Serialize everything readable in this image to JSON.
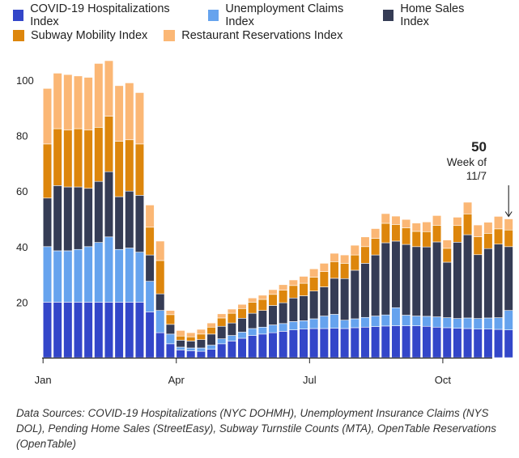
{
  "colors": {
    "covid": "#3346c9",
    "unemployment": "#66a3ee",
    "home": "#353c55",
    "subway": "#dd860c",
    "restaurant": "#fbb775",
    "axis": "#222222",
    "bar_edge": "#ffffff"
  },
  "legend": {
    "row1": [
      {
        "label": "COVID-19 Hospitalizations Index",
        "color": "#3346c9"
      },
      {
        "label": "Unemployment Claims Index",
        "color": "#66a3ee"
      },
      {
        "label": "Home Sales Index",
        "color": "#353c55"
      }
    ],
    "row2": [
      {
        "label": "Subway Mobility Index",
        "color": "#dd860c"
      },
      {
        "label": "Restaurant Reservations Index",
        "color": "#fbb775"
      }
    ]
  },
  "source_note": "Data Sources: COVID-19 Hospitalizations (NYC DOHMH), Unemployment Insurance Claims (NYS DOL), Pending Home Sales (StreetEasy), Subway Turnstile Counts (MTA), OpenTable Reservations (OpenTable)",
  "chart_data": {
    "type": "bar",
    "stacked": true,
    "title": "",
    "xlabel": "",
    "ylabel": "",
    "ylim": [
      0,
      108
    ],
    "yticks": [
      20,
      40,
      60,
      80,
      100
    ],
    "xticks": [
      {
        "label": "Jan",
        "index": 0
      },
      {
        "label": "Apr",
        "index": 13
      },
      {
        "label": "Jul",
        "index": 26
      },
      {
        "label": "Oct",
        "index": 39
      }
    ],
    "annotation": {
      "value": "50",
      "text_line1": "Week of",
      "text_line2": "11/7",
      "index": 45
    },
    "series": [
      {
        "name": "COVID-19 Hospitalizations Index",
        "values": [
          20,
          20,
          20,
          20,
          20,
          20,
          20,
          20,
          20,
          20,
          16.5,
          9,
          5,
          2.8,
          2.5,
          2.3,
          3,
          5,
          6,
          7,
          8,
          8.5,
          9,
          9.5,
          10,
          10.3,
          10.5,
          10.5,
          10.6,
          10.5,
          10.8,
          11,
          11.2,
          11.4,
          11.5,
          11.5,
          11.5,
          11.3,
          11,
          10.8,
          10.6,
          10.5,
          10.3,
          10.3,
          10.2,
          10
        ]
      },
      {
        "name": "Unemployment Claims Index",
        "values": [
          20,
          18.5,
          18.5,
          19,
          20,
          21.5,
          23.5,
          19,
          19.5,
          18,
          11,
          8,
          3.5,
          1,
          1,
          1.2,
          1.5,
          1.8,
          2,
          2.2,
          2.5,
          2.5,
          2.8,
          2.8,
          3,
          3,
          3.5,
          4.5,
          5,
          3,
          3.2,
          3.5,
          3.8,
          4,
          6.5,
          3.8,
          3.5,
          3.6,
          3.7,
          3.6,
          3.5,
          3.8,
          3.8,
          4,
          4.2,
          7
        ]
      },
      {
        "name": "Home Sales Index",
        "values": [
          17.5,
          23.5,
          23,
          22.5,
          21,
          22,
          23.5,
          19,
          20.5,
          20.5,
          9.5,
          6,
          3.5,
          2.5,
          2.5,
          3,
          4,
          4.5,
          4.5,
          5,
          5.5,
          6,
          7,
          7.5,
          8.5,
          9,
          10,
          10.5,
          13,
          15,
          17.5,
          19.5,
          22,
          26,
          24,
          25.5,
          25,
          25,
          27,
          20,
          27.5,
          30,
          23,
          25,
          26.5,
          23
        ]
      },
      {
        "name": "Subway Mobility Index",
        "values": [
          19.5,
          20.5,
          20.5,
          21,
          21,
          19.5,
          20,
          20,
          18.5,
          18.5,
          10,
          12,
          3.5,
          1.5,
          1.5,
          2,
          2.5,
          3,
          3.5,
          3.5,
          4,
          4,
          4,
          4.5,
          4.5,
          4.5,
          5,
          5.5,
          6,
          5.5,
          5.5,
          6,
          6,
          7,
          6,
          6,
          5.5,
          5.5,
          6,
          5,
          6,
          7.5,
          6.5,
          5.5,
          5.5,
          6
        ]
      },
      {
        "name": "Restaurant Reservations Index",
        "values": [
          20,
          20,
          20,
          19,
          19,
          23,
          20,
          20,
          20.5,
          18.5,
          8,
          7,
          1.5,
          2,
          1.5,
          1.7,
          1.5,
          1.5,
          1.5,
          1.5,
          1.5,
          1.5,
          1.7,
          2,
          2,
          2.5,
          3,
          3,
          3,
          3,
          3.5,
          3.5,
          3.5,
          3.5,
          3,
          3,
          3,
          3.5,
          3.5,
          3,
          3,
          4.2,
          4.2,
          4,
          4.5,
          4
        ]
      }
    ]
  }
}
